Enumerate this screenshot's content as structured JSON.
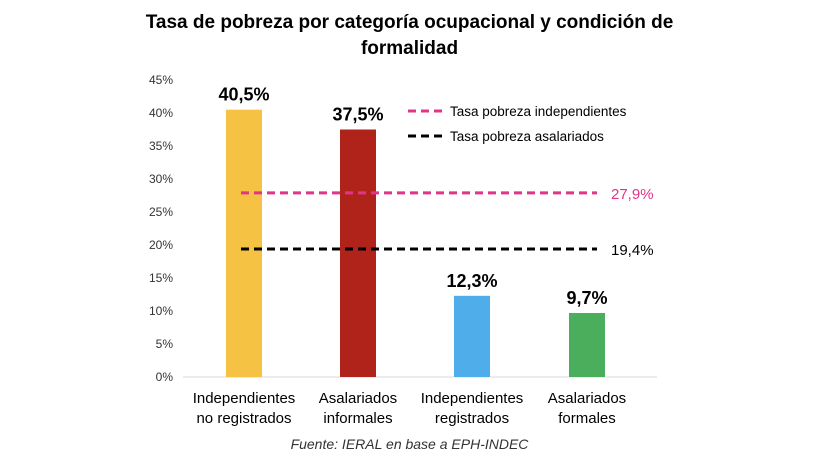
{
  "chart_data": {
    "type": "bar",
    "title_lines": [
      "Tasa de pobreza por categoría ocupacional y condición de",
      "formalidad"
    ],
    "categories": [
      [
        "Independientes",
        "no registrados"
      ],
      [
        "Asalariados",
        "informales"
      ],
      [
        "Independientes",
        "registrados"
      ],
      [
        "Asalariados",
        "formales"
      ]
    ],
    "values": [
      40.5,
      37.5,
      12.3,
      9.7
    ],
    "data_labels": [
      "40,5%",
      "37,5%",
      "12,3%",
      "9,7%"
    ],
    "bar_colors": [
      "#F6C243",
      "#B0231A",
      "#4FADE9",
      "#4AAE5C"
    ],
    "ylim": [
      0,
      45
    ],
    "yticks": [
      "0%",
      "5%",
      "10%",
      "15%",
      "20%",
      "25%",
      "30%",
      "35%",
      "40%",
      "45%"
    ],
    "grid": false,
    "reference_lines": [
      {
        "name": "Tasa pobreza independientes",
        "value": 27.9,
        "label": "27,9%",
        "color": "#E0358A",
        "style": "dashed"
      },
      {
        "name": "Tasa pobreza asalariados",
        "value": 19.4,
        "label": "19,4%",
        "color": "#000000",
        "style": "dashed"
      }
    ],
    "legend_placement": "top-right",
    "source": "Fuente: IERAL en base a EPH-INDEC"
  }
}
